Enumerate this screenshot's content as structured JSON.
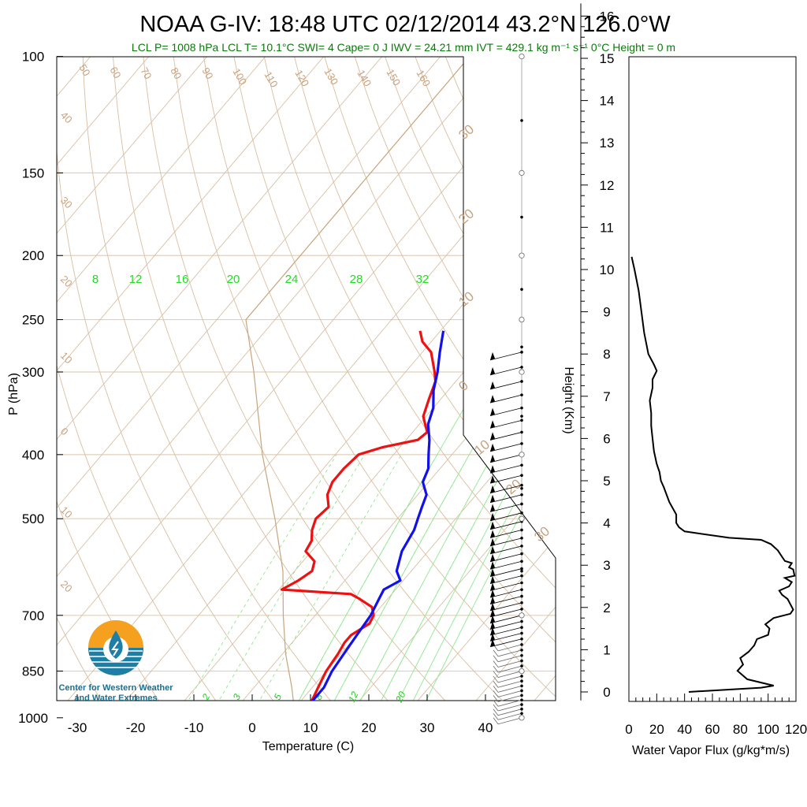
{
  "title": "NOAA G-IV: 18:48 UTC 02/12/2014  43.2°N 126.0°W",
  "subtitle": "LCL P= 1008 hPa  LCL T= 10.1°C  SWI= 4  Cape= 0 J  IWV = 24.21 mm  IVT = 429.1 kg m⁻¹ s⁻¹  0°C Height = 0 m",
  "logo": {
    "line1": "Center for Western Weather",
    "line2": "and Water Extremes"
  },
  "colors": {
    "temperature": "#ee1111",
    "dewpoint": "#1111ee",
    "dry_adiabat": "#c9a27e",
    "mixing_ratio": "#22dd22",
    "brand_orange": "#f5a01e",
    "brand_blue": "#1d7fa6"
  },
  "chart_data": [
    {
      "type": "skew-t",
      "title": "NOAA G-IV: 18:48 UTC 02/12/2014  43.2°N 126.0°W",
      "xlabel": "Temperature (C)",
      "ylabel": "P (hPa)",
      "x_ticks": [
        "-30",
        "-20",
        "-10",
        "0",
        "10",
        "20",
        "30",
        "40"
      ],
      "y_ticks": [
        "100",
        "150",
        "200",
        "250",
        "300",
        "400",
        "500",
        "700",
        "850",
        "1000"
      ],
      "xlim": [
        -34,
        40
      ],
      "ylim": [
        1050,
        100
      ],
      "dry_adiabat_labels": [
        "50",
        "60",
        "70",
        "80",
        "90",
        "100",
        "110",
        "120",
        "130",
        "140",
        "150",
        "160",
        "40",
        "30",
        "20",
        "10",
        "0",
        "10",
        "20"
      ],
      "isotherm_labels": [
        "30",
        "20",
        "10",
        "0",
        "10",
        "20",
        "30"
      ],
      "mixing_ratio_labels_top": [
        "8",
        "12",
        "16",
        "20",
        "24",
        "28",
        "32"
      ],
      "mixing_ratio_labels_bottom": [
        "2",
        "3",
        "5",
        "8",
        "12",
        "20"
      ],
      "series": [
        {
          "name": "temperature",
          "points": [
            [
              1000,
              11.5
            ],
            [
              980,
              12.0
            ],
            [
              950,
              12.0
            ],
            [
              900,
              11.0
            ],
            [
              850,
              10.0
            ],
            [
              800,
              9.5
            ],
            [
              770,
              9.0
            ],
            [
              750,
              9.0
            ],
            [
              720,
              10.5
            ],
            [
              700,
              10.0
            ],
            [
              680,
              8.5
            ],
            [
              660,
              5.0
            ],
            [
              650,
              3.0
            ],
            [
              640,
              -9.5
            ],
            [
              620,
              -8.0
            ],
            [
              600,
              -7.0
            ],
            [
              580,
              -8.0
            ],
            [
              560,
              -11.0
            ],
            [
              540,
              -11.5
            ],
            [
              520,
              -13.0
            ],
            [
              500,
              -14.0
            ],
            [
              480,
              -13.5
            ],
            [
              460,
              -15.5
            ],
            [
              440,
              -16.5
            ],
            [
              420,
              -16.5
            ],
            [
              400,
              -16.0
            ],
            [
              390,
              -13.0
            ],
            [
              380,
              -8.0
            ],
            [
              370,
              -7.5
            ],
            [
              360,
              -9.0
            ],
            [
              350,
              -10.5
            ],
            [
              330,
              -12.0
            ],
            [
              310,
              -13.5
            ],
            [
              300,
              -15.0
            ],
            [
              280,
              -18.5
            ],
            [
              270,
              -21.5
            ],
            [
              260,
              -23.5
            ]
          ]
        },
        {
          "name": "dewpoint",
          "points": [
            [
              1000,
              12.0
            ],
            [
              950,
              12.0
            ],
            [
              900,
              12.0
            ],
            [
              850,
              11.0
            ],
            [
              800,
              10.5
            ],
            [
              750,
              10.0
            ],
            [
              700,
              9.5
            ],
            [
              660,
              8.5
            ],
            [
              640,
              8.0
            ],
            [
              620,
              9.5
            ],
            [
              600,
              7.5
            ],
            [
              560,
              5.5
            ],
            [
              520,
              4.5
            ],
            [
              500,
              3.5
            ],
            [
              480,
              2.5
            ],
            [
              460,
              1.5
            ],
            [
              440,
              -1.0
            ],
            [
              420,
              -2.0
            ],
            [
              400,
              -4.0
            ],
            [
              380,
              -6.0
            ],
            [
              360,
              -8.5
            ],
            [
              340,
              -10.0
            ],
            [
              320,
              -12.5
            ],
            [
              300,
              -14.5
            ],
            [
              280,
              -17.0
            ],
            [
              260,
              -19.5
            ]
          ]
        },
        {
          "name": "parcel",
          "points": [
            [
              1000,
              11.5
            ],
            [
              900,
              6.5
            ],
            [
              800,
              0.5
            ],
            [
              700,
              -5.5
            ],
            [
              600,
              -12.0
            ],
            [
              500,
              -21.0
            ],
            [
              400,
              -32.5
            ],
            [
              300,
              -46.0
            ],
            [
              250,
              -55.0
            ],
            [
              200,
              -55.0
            ],
            [
              100,
              -55.0
            ]
          ]
        }
      ],
      "wind_barbs": {
        "pressure_levels_hPa_from": 1000,
        "pressure_levels_hPa_to": 270,
        "dominant_direction": "westerly",
        "speed_range_kt": [
          5,
          40
        ]
      }
    },
    {
      "type": "line",
      "xlabel": "Water Vapor Flux (g/kg*m/s)",
      "ylabel": "Height (Km)",
      "x_ticks": [
        "0",
        "20",
        "40",
        "60",
        "80",
        "100",
        "120"
      ],
      "y_ticks": [
        "0",
        "1",
        "2",
        "3",
        "4",
        "5",
        "6",
        "7",
        "8",
        "9",
        "10",
        "11",
        "12",
        "13",
        "14",
        "15",
        "16"
      ],
      "xlim": [
        0,
        120
      ],
      "ylim": [
        -0.3,
        16.3
      ],
      "series": [
        {
          "name": "flux",
          "points": [
            [
              43,
              0.0
            ],
            [
              95,
              0.1
            ],
            [
              104,
              0.15
            ],
            [
              85,
              0.3
            ],
            [
              78,
              0.5
            ],
            [
              82,
              0.65
            ],
            [
              80,
              0.8
            ],
            [
              86,
              0.95
            ],
            [
              90,
              1.1
            ],
            [
              92,
              1.25
            ],
            [
              100,
              1.35
            ],
            [
              101,
              1.5
            ],
            [
              98,
              1.6
            ],
            [
              104,
              1.75
            ],
            [
              116,
              1.85
            ],
            [
              118,
              1.95
            ],
            [
              114,
              2.2
            ],
            [
              110,
              2.3
            ],
            [
              108,
              2.4
            ],
            [
              115,
              2.5
            ],
            [
              117,
              2.6
            ],
            [
              112,
              2.7
            ],
            [
              119,
              2.75
            ],
            [
              118,
              2.9
            ],
            [
              115,
              2.95
            ],
            [
              117,
              3.05
            ],
            [
              112,
              3.1
            ],
            [
              110,
              3.2
            ],
            [
              107,
              3.35
            ],
            [
              102,
              3.5
            ],
            [
              95,
              3.6
            ],
            [
              72,
              3.65
            ],
            [
              40,
              3.8
            ],
            [
              36,
              3.9
            ],
            [
              34,
              4.0
            ],
            [
              34,
              4.2
            ],
            [
              29,
              4.5
            ],
            [
              25,
              4.85
            ],
            [
              23,
              5.0
            ],
            [
              22,
              5.2
            ],
            [
              20,
              5.4
            ],
            [
              18,
              5.7
            ],
            [
              17,
              6.0
            ],
            [
              16,
              6.3
            ],
            [
              16,
              6.6
            ],
            [
              15,
              6.9
            ],
            [
              17,
              7.2
            ],
            [
              17,
              7.4
            ],
            [
              20,
              7.6
            ],
            [
              18,
              7.75
            ],
            [
              14,
              8.0
            ],
            [
              11,
              8.5
            ],
            [
              9,
              9.0
            ],
            [
              7,
              9.5
            ],
            [
              4,
              10.0
            ],
            [
              2,
              10.3
            ]
          ]
        }
      ]
    }
  ]
}
